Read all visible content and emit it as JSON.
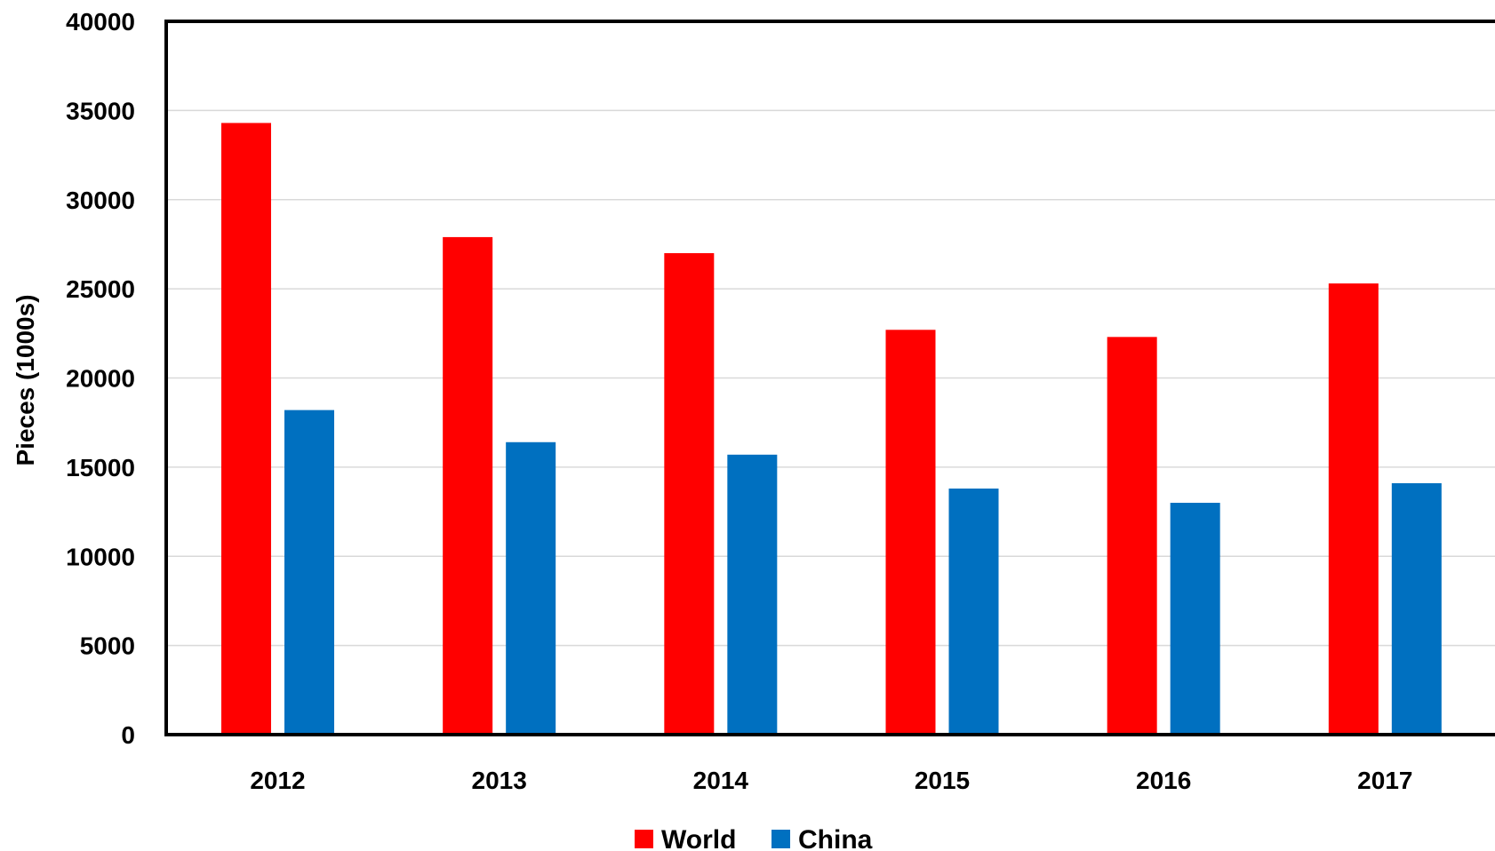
{
  "chart_data": {
    "type": "bar",
    "categories": [
      "2012",
      "2013",
      "2014",
      "2015",
      "2016",
      "2017"
    ],
    "series": [
      {
        "name": "World",
        "color": "#ff0000",
        "values": [
          34300,
          27900,
          27000,
          22700,
          22300,
          25300
        ]
      },
      {
        "name": "China",
        "color": "#0070c0",
        "values": [
          18200,
          16400,
          15700,
          13800,
          13000,
          14100
        ]
      }
    ],
    "title": "",
    "xlabel": "",
    "ylabel": "Pieces  (1000s)",
    "ylim": [
      0,
      40000
    ],
    "yticks": [
      "0",
      "5000",
      "10000",
      "15000",
      "20000",
      "25000",
      "30000",
      "35000",
      "40000"
    ],
    "grid": true,
    "legend": "bottom-center"
  }
}
